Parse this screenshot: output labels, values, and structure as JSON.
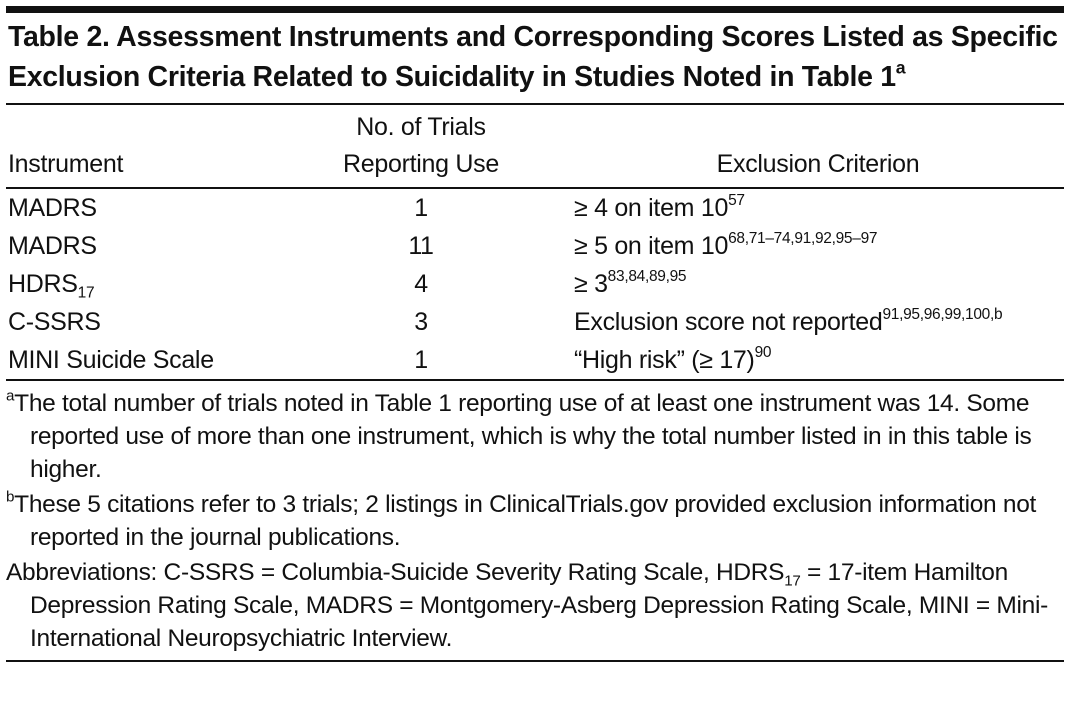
{
  "title": {
    "text": "Table 2. Assessment Instruments and Corresponding Scores Listed as Specific Exclusion Criteria Related to Suicidality in Studies Noted in Table 1",
    "sup": "a"
  },
  "table": {
    "headers": [
      "Instrument",
      "No. of Trials Reporting Use",
      "Exclusion Criterion"
    ],
    "rows": [
      {
        "instrument": "MADRS",
        "trials": 1,
        "criterion": "≥ 4 on item 10",
        "refs": "57"
      },
      {
        "instrument": "MADRS",
        "trials": 11,
        "criterion": "≥ 5 on item 10",
        "refs": "68,71–74,91,92,95–97"
      },
      {
        "instrument": "HDRS",
        "instrument_sub": "17",
        "trials": 4,
        "criterion": "≥ 3",
        "refs": "83,84,89,95"
      },
      {
        "instrument": "C-SSRS",
        "trials": 3,
        "criterion": "Exclusion score not reported",
        "refs": "91,95,96,99,100,b"
      },
      {
        "instrument": "MINI Suicide Scale",
        "trials": 1,
        "criterion": "“High risk” (≥ 17)",
        "refs": "90"
      }
    ]
  },
  "footnotes": [
    {
      "mark": "a",
      "text": "The total number of trials noted in Table 1 reporting use of at least one instrument was 14. Some reported use of more than one instrument, which is why the total number listed in in this table is higher."
    },
    {
      "mark": "b",
      "text": "These 5 citations refer to 3 trials; 2 listings in ClinicalTrials.gov provided exclusion information not reported in the journal publications."
    }
  ],
  "abbreviations": {
    "before": "Abbreviations: C-SSRS = Columbia-Suicide Severity Rating Scale, HDRS",
    "sub": "17",
    "after": " = 17-item Hamilton Depression Rating Scale, MADRS = Montgomery-Asberg Depression Rating Scale, MINI = Mini-International Neuropsychiatric Interview."
  }
}
